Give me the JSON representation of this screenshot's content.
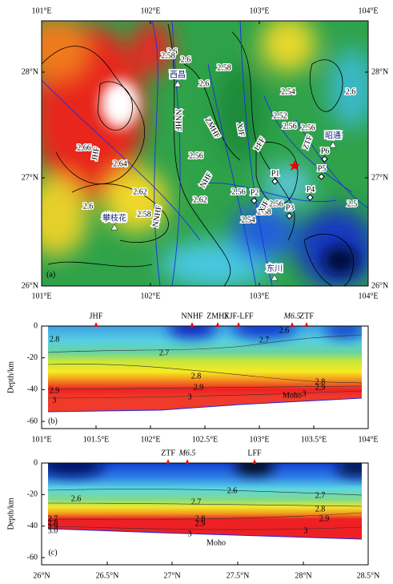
{
  "map": {
    "panel_label": "(a)",
    "lon_ticks": [
      "101°E",
      "102°E",
      "103°E",
      "104°E"
    ],
    "lat_ticks": [
      "26°N",
      "27°N",
      "28°N"
    ],
    "faults": [
      "JHF",
      "NNHF",
      "ZMHF",
      "XJF",
      "LFF",
      "ZTF",
      "NHF",
      "NNHF",
      "XJF"
    ],
    "cities": [
      "西昌",
      "昭通",
      "攀枝花",
      "东川"
    ],
    "points": [
      "P1",
      "P2",
      "P3",
      "P4",
      "P5",
      "P6"
    ],
    "contours": [
      "2.6",
      "2.58",
      "2.6",
      "2.6",
      "2.54",
      "2.52",
      "2.56",
      "2.56",
      "2.56",
      "2.58",
      "2.62",
      "2.64",
      "2.62",
      "2.58",
      "2.6",
      "2.66",
      "2.6",
      "2.56",
      "2.54",
      "2.56",
      "2.58",
      "2.5"
    ]
  },
  "section_b": {
    "panel_label": "(b)",
    "y_label": "Depth/km",
    "y_ticks": [
      "0",
      "-20",
      "-40",
      "-60"
    ],
    "x_ticks": [
      "101°E",
      "101.5°E",
      "102°E",
      "102.5°E",
      "103°E",
      "103.5°E",
      "104°E"
    ],
    "top_labels": [
      "JHF",
      "NNHF",
      "ZMHF",
      "XJF-LFF",
      "M6.5",
      "ZTF"
    ],
    "contours": [
      "2.8",
      "2.7",
      "2.7",
      "2.6",
      "2.8",
      "2.9",
      "2.9",
      "2.8",
      "2.9",
      "3",
      "3",
      "3"
    ],
    "moho": "Moho"
  },
  "section_c": {
    "panel_label": "(c)",
    "y_label": "Depth/km",
    "y_ticks": [
      "0",
      "-20",
      "-40",
      "-60"
    ],
    "x_ticks": [
      "26°N",
      "26.5°N",
      "27°N",
      "27.5°N",
      "28°N",
      "28.5°N"
    ],
    "top_labels": [
      "ZTF",
      "M6.5",
      "LFF"
    ],
    "contours": [
      "2.6",
      "2.6",
      "2.7",
      "2.7",
      "2.8",
      "2.9",
      "2.7",
      "2.8",
      "2.9",
      "3.0",
      "2.8",
      "2.9",
      "3",
      "3"
    ],
    "moho": "Moho"
  }
}
